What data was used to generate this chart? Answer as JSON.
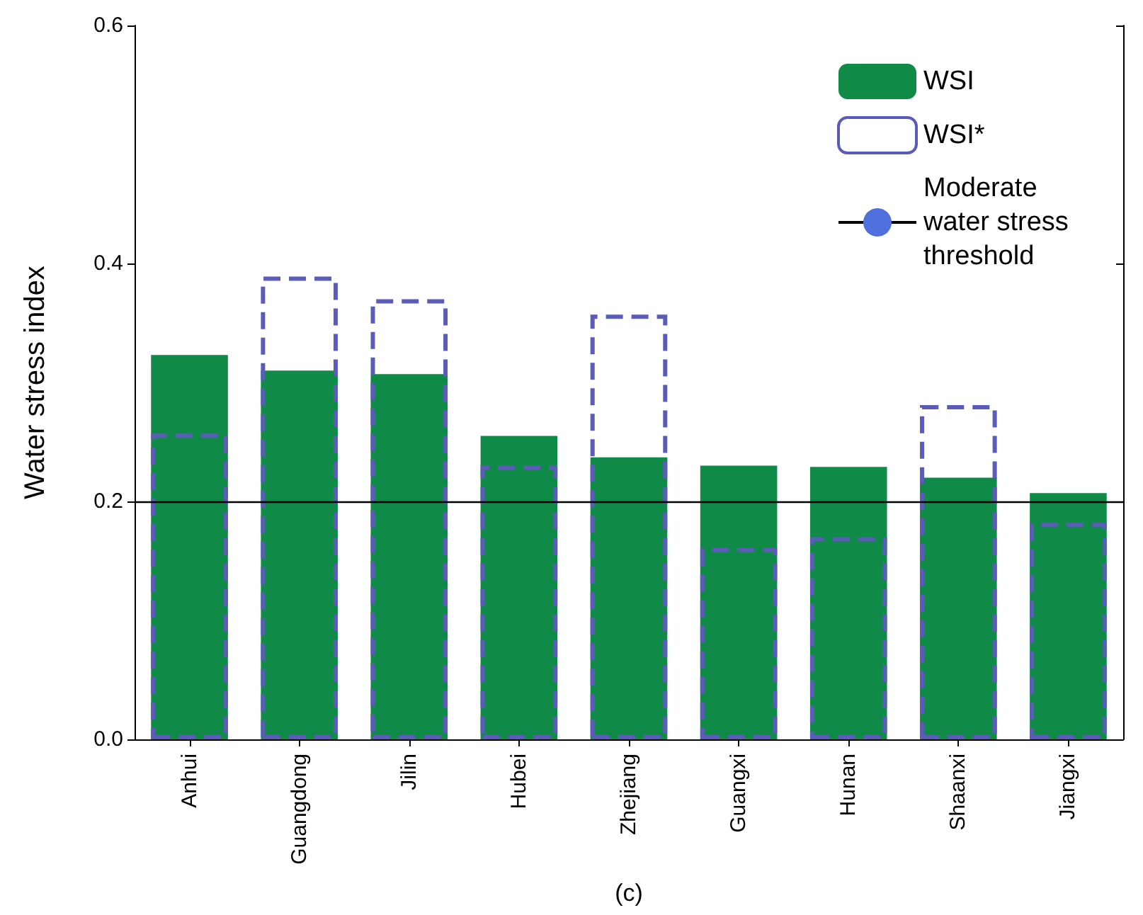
{
  "chart_data": {
    "type": "bar",
    "ylabel": "Water stress index",
    "xlabel": "(c)",
    "categories": [
      "Anhui",
      "Guangdong",
      "Jilin",
      "Hubei",
      "Zhejiang",
      "Guangxi",
      "Hunan",
      "Shaanxi",
      "Jiangxi"
    ],
    "series": [
      {
        "name": "WSI",
        "color": "#108a47",
        "values": [
          0.323,
          0.31,
          0.307,
          0.255,
          0.237,
          0.23,
          0.229,
          0.22,
          0.207
        ]
      },
      {
        "name": "WSI*",
        "color": "#5b5bb8",
        "line_style": "dashed",
        "values": [
          0.257,
          0.389,
          0.37,
          0.23,
          0.357,
          0.161,
          0.17,
          0.281,
          0.182
        ]
      }
    ],
    "ylim": [
      0,
      0.6
    ],
    "yticks": [
      {
        "value": 0,
        "label": "0.0"
      },
      {
        "value": 0.2,
        "label": "0.2"
      },
      {
        "value": 0.4,
        "label": "0.4"
      },
      {
        "value": 0.6,
        "label": "0.6"
      }
    ],
    "ref_lines": [
      {
        "axis": "y",
        "value": 0.2,
        "label": "Moderate water stress threshold",
        "color": "#000000"
      }
    ],
    "grid": false,
    "legend": "top right"
  }
}
